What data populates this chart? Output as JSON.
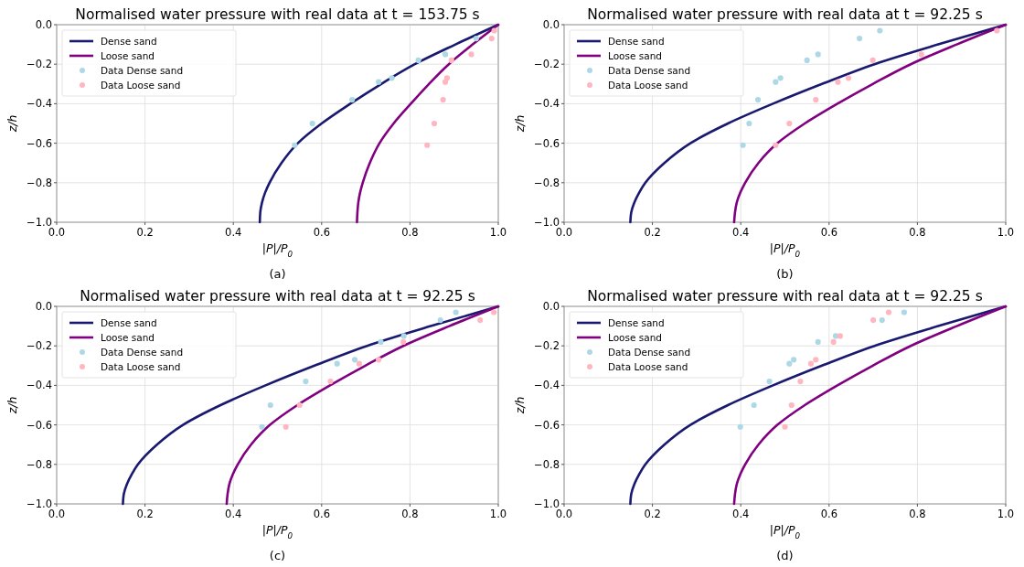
{
  "chart_data": [
    {
      "type": "line",
      "title": "Normalised water pressure with real data at t = 153.75 s",
      "xlabel": "|P|/P$_{0}$",
      "ylabel": "z/h",
      "annotations": [
        "(a)"
      ],
      "legend": "top left",
      "grid": true,
      "xlim": [
        0,
        1
      ],
      "ylim": [
        -1,
        0
      ],
      "xticks": [
        {
          "value": 0,
          "label": "0.0"
        },
        {
          "value": 0.2,
          "label": "0.2"
        },
        {
          "value": 0.4,
          "label": "0.4"
        },
        {
          "value": 0.6,
          "label": "0.6"
        },
        {
          "value": 0.8,
          "label": "0.8"
        },
        {
          "value": 1,
          "label": "1.0"
        }
      ],
      "yticks": [
        {
          "value": -1,
          "label": "−1.0"
        },
        {
          "value": -0.8,
          "label": "−0.8"
        },
        {
          "value": -0.6,
          "label": "−0.6"
        },
        {
          "value": -0.4,
          "label": "−0.4"
        },
        {
          "value": -0.2,
          "label": "−0.2"
        },
        {
          "value": 0,
          "label": "0.0"
        }
      ],
      "series": [
        {
          "name": "Dense sand",
          "type": "line",
          "color": "#191970",
          "x": [
            0.46,
            0.461,
            0.465,
            0.472,
            0.482,
            0.509,
            0.546,
            0.6,
            0.665,
            0.735,
            0.811,
            0.903,
            1.0
          ],
          "values": [
            -1,
            -0.95,
            -0.9,
            -0.85,
            -0.8,
            -0.7,
            -0.6,
            -0.5,
            -0.4,
            -0.3,
            -0.2,
            -0.1,
            0
          ]
        },
        {
          "name": "Loose sand",
          "type": "line",
          "color": "#800080",
          "x": [
            0.68,
            0.681,
            0.683,
            0.687,
            0.693,
            0.709,
            0.731,
            0.763,
            0.802,
            0.843,
            0.888,
            0.942,
            1.0
          ],
          "values": [
            -1,
            -0.95,
            -0.9,
            -0.85,
            -0.8,
            -0.7,
            -0.6,
            -0.5,
            -0.4,
            -0.3,
            -0.2,
            -0.1,
            0
          ]
        },
        {
          "name": "Data Dense sand",
          "type": "scatter",
          "marker": "circle",
          "color": "#add8e6",
          "x": [
            0.539,
            0.579,
            0.669,
            0.729,
            0.759,
            0.819,
            0.88,
            0.95
          ],
          "values": [
            -0.61,
            -0.5,
            -0.38,
            -0.29,
            -0.27,
            -0.18,
            -0.15,
            -0.07
          ]
        },
        {
          "name": "Data Loose sand",
          "type": "scatter",
          "marker": "circle",
          "color": "#ffb6c1",
          "x": [
            0.839,
            0.855,
            0.875,
            0.88,
            0.884,
            0.894,
            0.939,
            0.985,
            0.991
          ],
          "values": [
            -0.61,
            -0.5,
            -0.38,
            -0.29,
            -0.27,
            -0.18,
            -0.15,
            -0.07,
            -0.03
          ]
        }
      ]
    },
    {
      "type": "line",
      "title": "Normalised water pressure with real data at t = 92.25 s",
      "xlabel": "|P|/P$_{0}$",
      "ylabel": "z/h",
      "annotations": [
        "(b)"
      ],
      "legend": "top left",
      "grid": true,
      "xlim": [
        0,
        1
      ],
      "ylim": [
        -1,
        0
      ],
      "xticks": [
        {
          "value": 0,
          "label": "0.0"
        },
        {
          "value": 0.2,
          "label": "0.2"
        },
        {
          "value": 0.4,
          "label": "0.4"
        },
        {
          "value": 0.6,
          "label": "0.6"
        },
        {
          "value": 0.8,
          "label": "0.8"
        },
        {
          "value": 1,
          "label": "1.0"
        }
      ],
      "yticks": [
        {
          "value": -1,
          "label": "−1.0"
        },
        {
          "value": -0.8,
          "label": "−0.8"
        },
        {
          "value": -0.6,
          "label": "−0.6"
        },
        {
          "value": -0.4,
          "label": "−0.4"
        },
        {
          "value": -0.2,
          "label": "−0.2"
        },
        {
          "value": 0,
          "label": "0.0"
        }
      ],
      "series": [
        {
          "name": "Dense sand",
          "type": "line",
          "color": "#191970",
          "x": [
            0.15,
            0.152,
            0.159,
            0.17,
            0.184,
            0.227,
            0.286,
            0.371,
            0.473,
            0.584,
            0.703,
            0.847,
            1.0
          ],
          "values": [
            -1,
            -0.95,
            -0.9,
            -0.85,
            -0.8,
            -0.7,
            -0.6,
            -0.5,
            -0.4,
            -0.3,
            -0.2,
            -0.1,
            0
          ]
        },
        {
          "name": "Loose sand",
          "type": "line",
          "color": "#800080",
          "x": [
            0.385,
            0.387,
            0.391,
            0.399,
            0.41,
            0.44,
            0.483,
            0.545,
            0.619,
            0.699,
            0.785,
            0.889,
            1.0
          ],
          "values": [
            -1,
            -0.95,
            -0.9,
            -0.85,
            -0.8,
            -0.7,
            -0.6,
            -0.5,
            -0.4,
            -0.3,
            -0.2,
            -0.1,
            0
          ]
        },
        {
          "name": "Data Dense sand",
          "type": "scatter",
          "marker": "circle",
          "color": "#add8e6",
          "x": [
            0.405,
            0.419,
            0.439,
            0.479,
            0.49,
            0.55,
            0.575,
            0.669,
            0.715
          ],
          "values": [
            -0.61,
            -0.5,
            -0.38,
            -0.29,
            -0.27,
            -0.18,
            -0.15,
            -0.07,
            -0.03
          ]
        },
        {
          "name": "Data Loose sand",
          "type": "scatter",
          "marker": "circle",
          "color": "#ffb6c1",
          "x": [
            0.479,
            0.51,
            0.57,
            0.62,
            0.644,
            0.699,
            0.809,
            0.98
          ],
          "values": [
            -0.61,
            -0.5,
            -0.38,
            -0.29,
            -0.27,
            -0.18,
            -0.15,
            -0.03
          ]
        }
      ]
    },
    {
      "type": "line",
      "title": "Normalised water pressure with real data at t = 92.25 s",
      "xlabel": "|P|/P$_{0}$",
      "ylabel": "z/h",
      "annotations": [
        "(c)"
      ],
      "legend": "top left",
      "grid": true,
      "xlim": [
        0,
        1
      ],
      "ylim": [
        -1,
        0
      ],
      "xticks": [
        {
          "value": 0,
          "label": "0.0"
        },
        {
          "value": 0.2,
          "label": "0.2"
        },
        {
          "value": 0.4,
          "label": "0.4"
        },
        {
          "value": 0.6,
          "label": "0.6"
        },
        {
          "value": 0.8,
          "label": "0.8"
        },
        {
          "value": 1,
          "label": "1.0"
        }
      ],
      "yticks": [
        {
          "value": -1,
          "label": "−1.0"
        },
        {
          "value": -0.8,
          "label": "−0.8"
        },
        {
          "value": -0.6,
          "label": "−0.6"
        },
        {
          "value": -0.4,
          "label": "−0.4"
        },
        {
          "value": -0.2,
          "label": "−0.2"
        },
        {
          "value": 0,
          "label": "0.0"
        }
      ],
      "series": [
        {
          "name": "Dense sand",
          "type": "line",
          "color": "#191970",
          "x": [
            0.15,
            0.152,
            0.159,
            0.17,
            0.184,
            0.227,
            0.286,
            0.371,
            0.473,
            0.584,
            0.703,
            0.847,
            1.0
          ],
          "values": [
            -1,
            -0.95,
            -0.9,
            -0.85,
            -0.8,
            -0.7,
            -0.6,
            -0.5,
            -0.4,
            -0.3,
            -0.2,
            -0.1,
            0
          ]
        },
        {
          "name": "Loose sand",
          "type": "line",
          "color": "#800080",
          "x": [
            0.385,
            0.387,
            0.391,
            0.399,
            0.41,
            0.44,
            0.483,
            0.545,
            0.619,
            0.699,
            0.785,
            0.889,
            1.0
          ],
          "values": [
            -1,
            -0.95,
            -0.9,
            -0.85,
            -0.8,
            -0.7,
            -0.6,
            -0.5,
            -0.4,
            -0.3,
            -0.2,
            -0.1,
            0
          ]
        },
        {
          "name": "Data Dense sand",
          "type": "scatter",
          "marker": "circle",
          "color": "#add8e6",
          "x": [
            0.465,
            0.484,
            0.564,
            0.635,
            0.675,
            0.734,
            0.786,
            0.869,
            0.904
          ],
          "values": [
            -0.61,
            -0.5,
            -0.38,
            -0.29,
            -0.27,
            -0.18,
            -0.15,
            -0.07,
            -0.03
          ]
        },
        {
          "name": "Data Loose sand",
          "type": "scatter",
          "marker": "circle",
          "color": "#ffb6c1",
          "x": [
            0.519,
            0.55,
            0.62,
            0.685,
            0.729,
            0.785,
            0.959,
            0.99
          ],
          "values": [
            -0.61,
            -0.5,
            -0.38,
            -0.29,
            -0.27,
            -0.18,
            -0.07,
            -0.03
          ]
        }
      ]
    },
    {
      "type": "line",
      "title": "Normalised water pressure with real data at t = 92.25 s",
      "xlabel": "|P|/P$_{0}$",
      "ylabel": "z/h",
      "annotations": [
        "(d)"
      ],
      "legend": "top left",
      "grid": true,
      "xlim": [
        0,
        1
      ],
      "ylim": [
        -1,
        0
      ],
      "xticks": [
        {
          "value": 0,
          "label": "0.0"
        },
        {
          "value": 0.2,
          "label": "0.2"
        },
        {
          "value": 0.4,
          "label": "0.4"
        },
        {
          "value": 0.6,
          "label": "0.6"
        },
        {
          "value": 0.8,
          "label": "0.8"
        },
        {
          "value": 1,
          "label": "1.0"
        }
      ],
      "yticks": [
        {
          "value": -1,
          "label": "−1.0"
        },
        {
          "value": -0.8,
          "label": "−0.8"
        },
        {
          "value": -0.6,
          "label": "−0.6"
        },
        {
          "value": -0.4,
          "label": "−0.4"
        },
        {
          "value": -0.2,
          "label": "−0.2"
        },
        {
          "value": 0,
          "label": "0.0"
        }
      ],
      "series": [
        {
          "name": "Dense sand",
          "type": "line",
          "color": "#191970",
          "x": [
            0.15,
            0.152,
            0.159,
            0.17,
            0.184,
            0.227,
            0.286,
            0.371,
            0.473,
            0.584,
            0.703,
            0.847,
            1.0
          ],
          "values": [
            -1,
            -0.95,
            -0.9,
            -0.85,
            -0.8,
            -0.7,
            -0.6,
            -0.5,
            -0.4,
            -0.3,
            -0.2,
            -0.1,
            0
          ]
        },
        {
          "name": "Loose sand",
          "type": "line",
          "color": "#800080",
          "x": [
            0.385,
            0.387,
            0.391,
            0.399,
            0.41,
            0.44,
            0.483,
            0.545,
            0.619,
            0.699,
            0.785,
            0.889,
            1.0
          ],
          "values": [
            -1,
            -0.95,
            -0.9,
            -0.85,
            -0.8,
            -0.7,
            -0.6,
            -0.5,
            -0.4,
            -0.3,
            -0.2,
            -0.1,
            0
          ]
        },
        {
          "name": "Data Dense sand",
          "type": "scatter",
          "marker": "circle",
          "color": "#add8e6",
          "x": [
            0.399,
            0.43,
            0.465,
            0.51,
            0.52,
            0.575,
            0.615,
            0.72,
            0.77
          ],
          "values": [
            -0.61,
            -0.5,
            -0.38,
            -0.29,
            -0.27,
            -0.18,
            -0.15,
            -0.07,
            -0.03
          ]
        },
        {
          "name": "Data Loose sand",
          "type": "scatter",
          "marker": "circle",
          "color": "#ffb6c1",
          "x": [
            0.5,
            0.515,
            0.535,
            0.559,
            0.57,
            0.61,
            0.625,
            0.7,
            0.735
          ],
          "values": [
            -0.61,
            -0.5,
            -0.38,
            -0.29,
            -0.27,
            -0.18,
            -0.15,
            -0.07,
            -0.03
          ]
        }
      ]
    }
  ]
}
